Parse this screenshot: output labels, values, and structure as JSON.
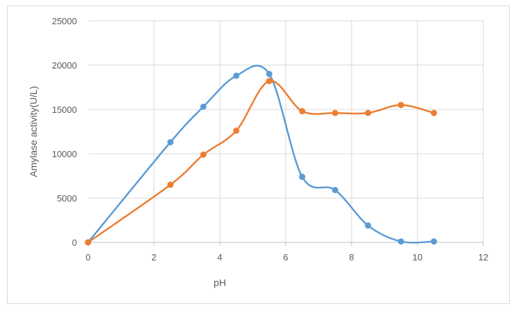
{
  "chart_data": {
    "type": "line",
    "title": "",
    "xlabel": "pH",
    "ylabel": "Amylase activity(U/L)",
    "xlim": [
      0,
      12
    ],
    "ylim": [
      0,
      25000
    ],
    "x_ticks": [
      "0",
      "2",
      "4",
      "6",
      "8",
      "10",
      "12"
    ],
    "y_ticks": [
      "0",
      "5000",
      "10000",
      "15000",
      "20000",
      "25000"
    ],
    "grid": true,
    "legend": "none",
    "smooth": true,
    "series": [
      {
        "color": "#5b9bd5",
        "x": [
          0,
          2.5,
          3.5,
          4.5,
          5.5,
          6.5,
          7.5,
          8.5,
          9.5,
          10.5
        ],
        "values": [
          0,
          11300,
          15300,
          18800,
          19000,
          7400,
          5900,
          1900,
          100,
          100
        ]
      },
      {
        "color": "#ed7d31",
        "x": [
          0,
          2.5,
          3.5,
          4.5,
          5.5,
          6.5,
          7.5,
          8.5,
          9.5,
          10.5
        ],
        "values": [
          0,
          6500,
          9900,
          12600,
          18200,
          14800,
          14600,
          14600,
          15500,
          14600
        ]
      }
    ]
  }
}
